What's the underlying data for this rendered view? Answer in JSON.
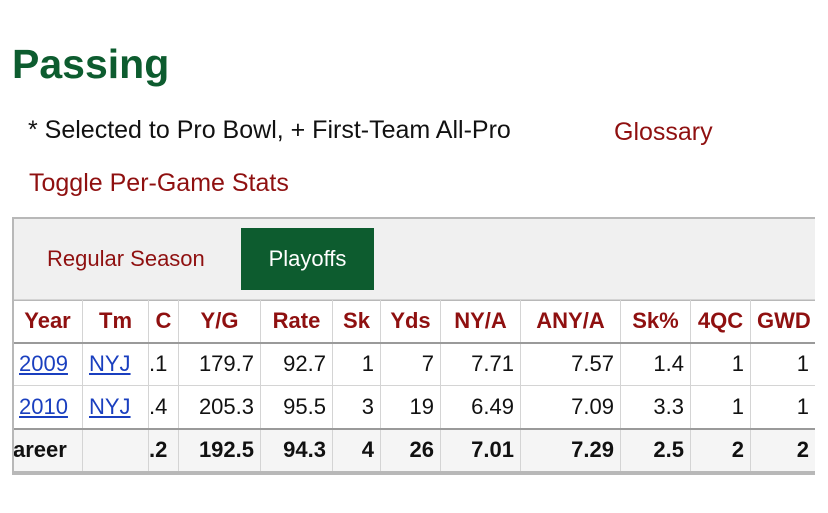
{
  "section": {
    "title": "Passing",
    "note": "* Selected to Pro Bowl, + First-Team All-Pro",
    "glossary_link": "Glossary",
    "toggle_link": "Toggle Per-Game Stats"
  },
  "tabs": [
    {
      "label": "Regular Season",
      "active": false
    },
    {
      "label": "Playoffs",
      "active": true
    }
  ],
  "colors": {
    "brand_green": "#0d5c2f",
    "link_red": "#8f1010",
    "link_blue": "#1a3fbf"
  },
  "table": {
    "columns": [
      "Year",
      "Tm",
      "C",
      "Y/G",
      "Rate",
      "Sk",
      "Yds",
      "NY/A",
      "ANY/A",
      "Sk%",
      "4QC",
      "GWD"
    ],
    "rows": [
      {
        "year": "2009",
        "tm": "NYJ",
        "c": ".1",
        "yg": "179.7",
        "rate": "92.7",
        "sk": "1",
        "yds": "7",
        "nya": "7.71",
        "anya": "7.57",
        "skp": "1.4",
        "qc": "1",
        "gwd": "1"
      },
      {
        "year": "2010",
        "tm": "NYJ",
        "c": ".4",
        "yg": "205.3",
        "rate": "95.5",
        "sk": "3",
        "yds": "19",
        "nya": "6.49",
        "anya": "7.09",
        "skp": "3.3",
        "qc": "1",
        "gwd": "1"
      }
    ],
    "career": {
      "year": "areer",
      "tm": "",
      "c": ".2",
      "yg": "192.5",
      "rate": "94.3",
      "sk": "4",
      "yds": "26",
      "nya": "7.01",
      "anya": "7.29",
      "skp": "2.5",
      "qc": "2",
      "gwd": "2"
    }
  }
}
